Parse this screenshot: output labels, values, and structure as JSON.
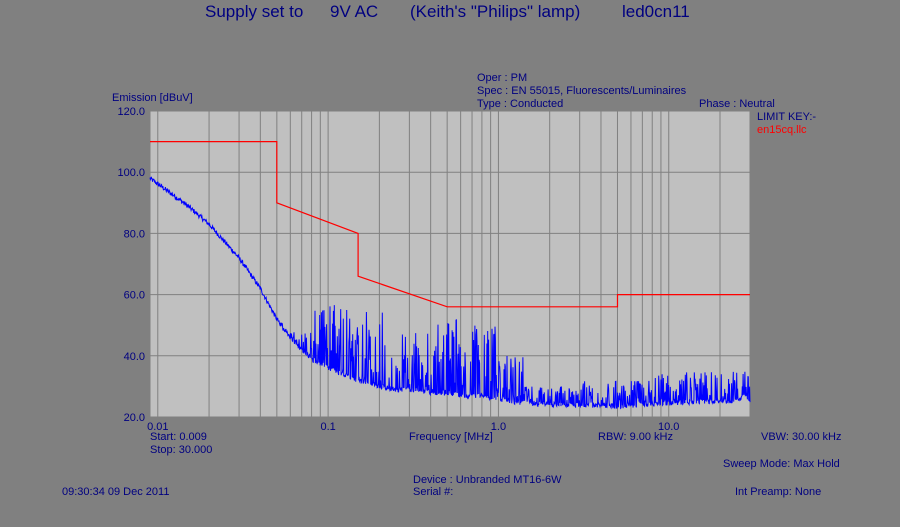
{
  "title_parts": [
    "Supply set to",
    "9V AC",
    "(Keith's \"Philips\" lamp)",
    "led0cn11"
  ],
  "info": {
    "oper": "Oper : PM",
    "spec": "Spec : EN 55015, Fluorescents/Luminaires",
    "type": "Type : Conducted",
    "phase": "Phase : Neutral",
    "limit_key": "LIMIT KEY:-",
    "limit_name": "en15cq.llc"
  },
  "footer": {
    "start": "Start: 0.009",
    "stop": "Stop: 30.000",
    "xlabel": "Frequency [MHz]",
    "rbw": "RBW: 9.00 kHz",
    "vbw": "VBW: 30.00 kHz",
    "sweep_mode": "Sweep Mode: Max Hold",
    "device": "Device : Unbranded MT16-6W",
    "serial": "Serial #:",
    "timestamp": "09:30:34 09 Dec 2011",
    "preamp": "Int Preamp: None"
  },
  "colors": {
    "plot_bg": "#c0c0c0",
    "page_bg": "#808080",
    "grid": "#808080",
    "text": "#000080",
    "limit": "#ff0000",
    "trace": "#0000ff"
  },
  "chart_data": {
    "type": "line",
    "ylabel": "Emission [dBuV]",
    "xlabel": "Frequency [MHz]",
    "x_scale": "log",
    "xlim": [
      0.009,
      30.0
    ],
    "ylim": [
      20,
      120
    ],
    "y_ticks": [
      "20.0",
      "40.0",
      "60.0",
      "80.0",
      "100.0",
      "120.0"
    ],
    "x_ticks": [
      {
        "value": 0.01,
        "label": "0.01"
      },
      {
        "value": 0.1,
        "label": "0.1"
      },
      {
        "value": 1.0,
        "label": "1.0"
      },
      {
        "value": 10.0,
        "label": "10.0"
      }
    ],
    "grid": true,
    "series": [
      {
        "name": "en15cq.llc",
        "color": "#ff0000",
        "x": [
          0.009,
          0.05,
          0.05,
          0.15,
          0.15,
          0.5,
          5.0,
          5.0,
          30.0
        ],
        "y": [
          110,
          110,
          90,
          80,
          66,
          56,
          56,
          60,
          60
        ]
      },
      {
        "color": "#0000ff",
        "envelope_x": [
          0.009,
          0.012,
          0.015,
          0.02,
          0.03,
          0.04,
          0.05,
          0.06,
          0.07,
          0.08,
          0.1,
          0.12,
          0.15,
          0.18,
          0.2,
          0.25,
          0.3,
          0.4,
          0.5,
          0.6,
          0.7,
          0.8,
          1.0,
          1.2,
          1.5,
          2.0,
          3.0,
          4.0,
          5.0,
          7.0,
          10.0,
          15.0,
          20.0,
          25.0,
          28.0,
          30.0
        ],
        "envelope_y": [
          98,
          93,
          89,
          83,
          72,
          62,
          52,
          46,
          42,
          39,
          36,
          34,
          32,
          31,
          30,
          29,
          29,
          28,
          28,
          27,
          27,
          27,
          26,
          25,
          24.5,
          24,
          24,
          23.8,
          23.5,
          24,
          24.5,
          25,
          25,
          25.5,
          27,
          25
        ],
        "bursts": [
          {
            "x_start": 0.05,
            "x_end": 0.08,
            "peak": 48
          },
          {
            "x_start": 0.08,
            "x_end": 0.22,
            "peak": 57
          },
          {
            "x_start": 0.22,
            "x_end": 0.4,
            "peak": 48
          },
          {
            "x_start": 0.4,
            "x_end": 0.6,
            "peak": 52
          },
          {
            "x_start": 0.6,
            "x_end": 1.0,
            "peak": 50
          },
          {
            "x_start": 1.0,
            "x_end": 1.4,
            "peak": 40
          },
          {
            "x_start": 1.4,
            "x_end": 3.0,
            "peak": 30
          },
          {
            "x_start": 3.0,
            "x_end": 8.0,
            "peak": 32
          },
          {
            "x_start": 8.0,
            "x_end": 30.0,
            "peak": 35
          }
        ]
      }
    ]
  }
}
